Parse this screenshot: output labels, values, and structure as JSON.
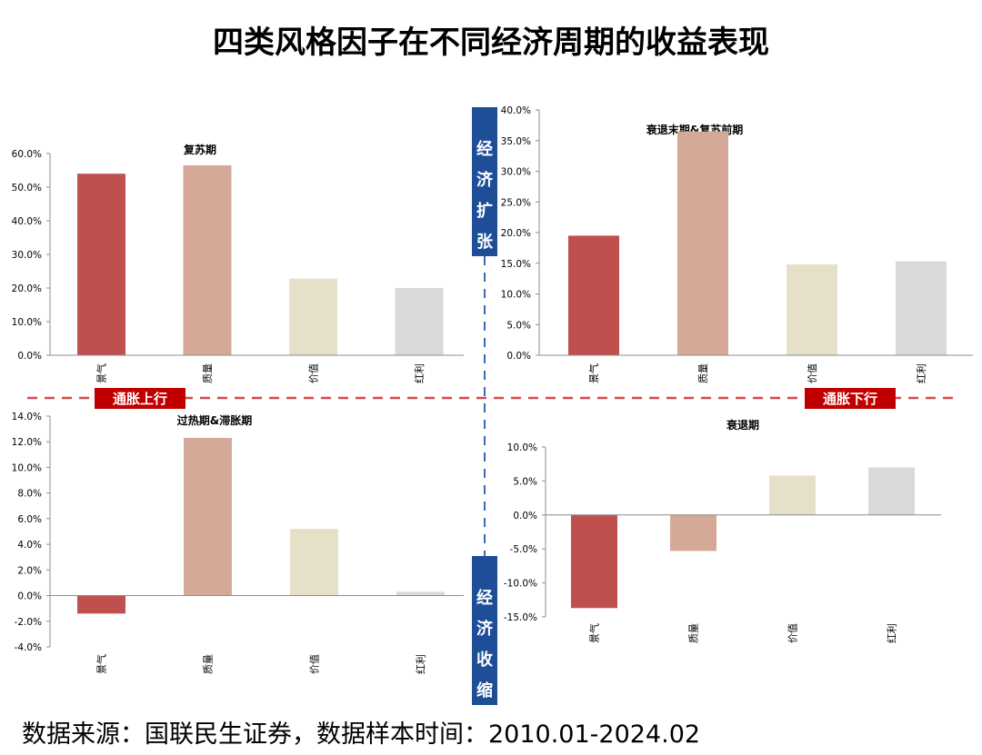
{
  "title": "四类风格因子在不同经济周期的收益表现",
  "source_note": "数据来源：国联民生证券，数据样本时间：2010.01-2024.02",
  "axis_labels": {
    "expansion": "经济扩张",
    "contraction": "经济收缩",
    "inflation_up": "通胀上行",
    "inflation_down": "通胀下行"
  },
  "colors": {
    "景气": "#c0504d",
    "质量": "#d5a998",
    "价值": "#e6e0c9",
    "红利": "#d9d9d9",
    "axis_box": "#1f4e99",
    "red_tag": "#c00000",
    "dashed_red": "#d9484c",
    "dashed_blue": "#3a6bb5"
  },
  "chart_data": [
    {
      "type": "bar",
      "title": "复苏期",
      "categories": [
        "景气",
        "质量",
        "价值",
        "红利"
      ],
      "values": [
        54.0,
        56.5,
        22.8,
        20.0
      ],
      "ylim": [
        0,
        60
      ],
      "yticks": [
        "0.0%",
        "10.0%",
        "20.0%",
        "30.0%",
        "40.0%",
        "50.0%",
        "60.0%"
      ],
      "grid": false
    },
    {
      "type": "bar",
      "title": "衰退末期&复苏前期",
      "categories": [
        "景气",
        "质量",
        "价值",
        "红利"
      ],
      "values": [
        19.5,
        36.5,
        14.8,
        15.3
      ],
      "ylim": [
        0,
        40
      ],
      "yticks": [
        "0.0%",
        "5.0%",
        "10.0%",
        "15.0%",
        "20.0%",
        "25.0%",
        "30.0%",
        "35.0%",
        "40.0%"
      ],
      "grid": false
    },
    {
      "type": "bar",
      "title": "过热期&滞胀期",
      "categories": [
        "景气",
        "质量",
        "价值",
        "红利"
      ],
      "values": [
        -1.4,
        12.3,
        5.2,
        0.3
      ],
      "ylim": [
        -4,
        14
      ],
      "yticks": [
        "-4.0%",
        "-2.0%",
        "0.0%",
        "2.0%",
        "4.0%",
        "6.0%",
        "8.0%",
        "10.0%",
        "12.0%",
        "14.0%"
      ],
      "grid": false
    },
    {
      "type": "bar",
      "title": "衰退期",
      "categories": [
        "景气",
        "质量",
        "价值",
        "红利"
      ],
      "values": [
        -13.7,
        -5.3,
        5.8,
        7.0
      ],
      "ylim": [
        -15,
        10
      ],
      "yticks": [
        "-15.0%",
        "-10.0%",
        "-5.0%",
        "0.0%",
        "5.0%",
        "10.0%"
      ],
      "grid": false
    }
  ]
}
